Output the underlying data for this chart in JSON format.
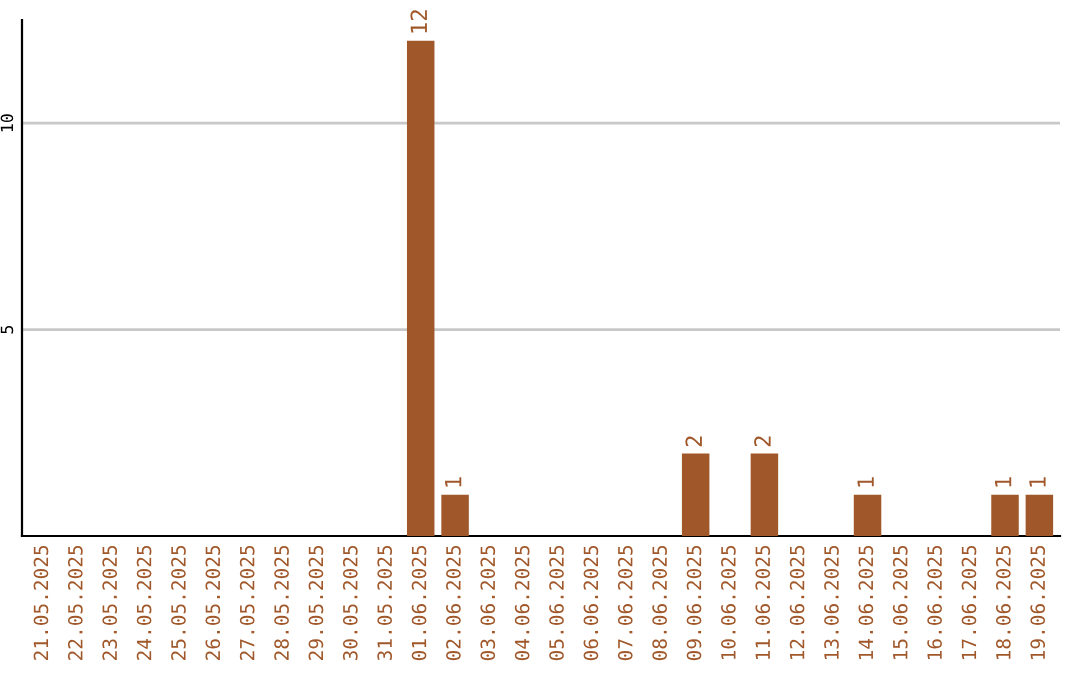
{
  "chart_data": {
    "type": "bar",
    "categories": [
      "21.05.2025",
      "22.05.2025",
      "23.05.2025",
      "24.05.2025",
      "25.05.2025",
      "26.05.2025",
      "27.05.2025",
      "28.05.2025",
      "29.05.2025",
      "30.05.2025",
      "31.05.2025",
      "01.06.2025",
      "02.06.2025",
      "03.06.2025",
      "04.06.2025",
      "05.06.2025",
      "06.06.2025",
      "07.06.2025",
      "08.06.2025",
      "09.06.2025",
      "10.06.2025",
      "11.06.2025",
      "12.06.2025",
      "13.06.2025",
      "14.06.2025",
      "15.06.2025",
      "16.06.2025",
      "17.06.2025",
      "18.06.2025",
      "19.06.2025"
    ],
    "values": [
      0,
      0,
      0,
      0,
      0,
      0,
      0,
      0,
      0,
      0,
      0,
      12,
      1,
      0,
      0,
      0,
      0,
      0,
      0,
      2,
      0,
      2,
      0,
      0,
      1,
      0,
      0,
      0,
      1,
      1
    ],
    "value_labels": [
      null,
      null,
      null,
      null,
      null,
      null,
      null,
      null,
      null,
      null,
      null,
      "12",
      "1",
      null,
      null,
      null,
      null,
      null,
      null,
      "2",
      null,
      "2",
      null,
      null,
      "1",
      null,
      null,
      null,
      "1",
      "1"
    ],
    "color": "#a0582a",
    "ylim": [
      0,
      12.5
    ],
    "yticks": [
      5,
      10
    ],
    "grid": "y"
  }
}
